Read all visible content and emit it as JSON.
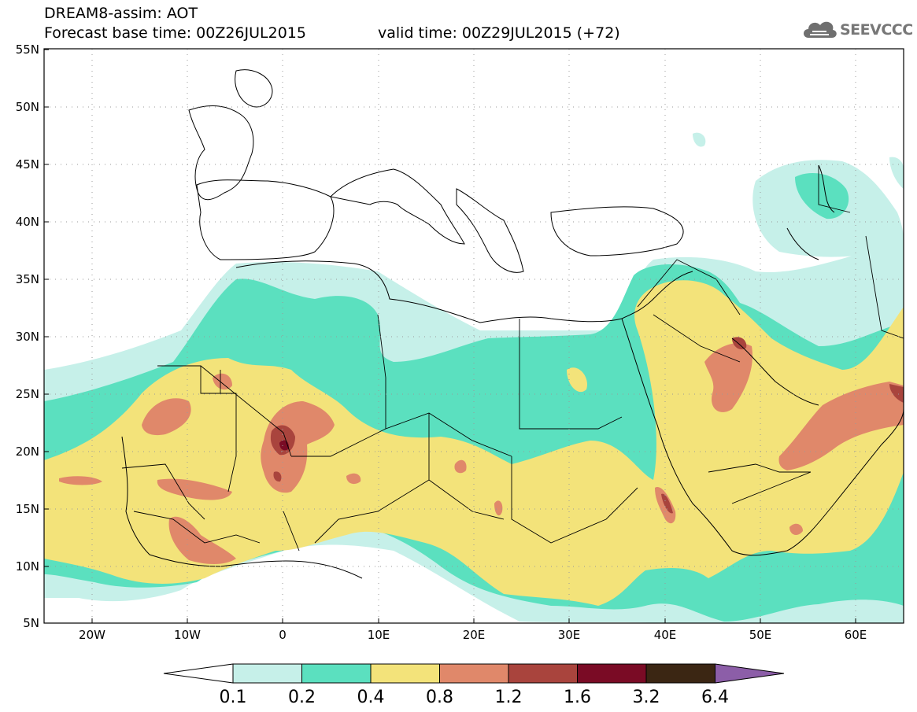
{
  "header": {
    "title_line1": "DREAM8-assim: AOT",
    "title_line2": "Forecast base time: 00Z26JUL2015",
    "valid_time": "valid time: 00Z29JUL2015 (+72)"
  },
  "logo": {
    "text": "SEEVCCC",
    "icon": "cloud-icon"
  },
  "axes": {
    "lat_labels": [
      "55N",
      "50N",
      "45N",
      "40N",
      "35N",
      "30N",
      "25N",
      "20N",
      "15N",
      "10N",
      "5N"
    ],
    "lon_labels": [
      "20W",
      "10W",
      "0",
      "10E",
      "20E",
      "30E",
      "40E",
      "50E",
      "60E"
    ],
    "lat_range": [
      5,
      55
    ],
    "lon_range": [
      -25,
      65
    ],
    "grid": "dotted"
  },
  "colorbar": {
    "levels": [
      "0.1",
      "0.2",
      "0.4",
      "0.8",
      "1.2",
      "1.6",
      "3.2",
      "6.4"
    ],
    "colors": [
      "#ffffff",
      "#c6f0e9",
      "#5be0bf",
      "#f3e37a",
      "#e0886a",
      "#a9443d",
      "#7a0b25",
      "#3b2613",
      "#8c5ea8"
    ]
  }
}
